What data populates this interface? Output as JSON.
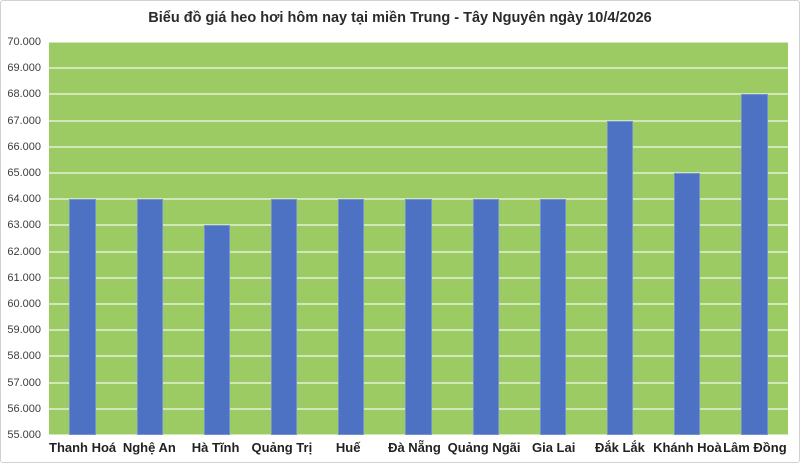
{
  "chart_data": {
    "type": "bar",
    "title": "Biểu đồ giá heo hơi hôm nay tại miền Trung - Tây Nguyên ngày 10/4/2026",
    "categories": [
      "Thanh Hoá",
      "Nghệ An",
      "Hà Tĩnh",
      "Quảng Trị",
      "Huế",
      "Đà Nẵng",
      "Quảng Ngãi",
      "Gia Lai",
      "Đắk Lắk",
      "Khánh Hoà",
      "Lâm Đồng"
    ],
    "values": [
      64000,
      64000,
      63000,
      64000,
      64000,
      64000,
      64000,
      64000,
      67000,
      65000,
      68000
    ],
    "xlabel": "",
    "ylabel": "",
    "ylim": [
      55000,
      70000
    ],
    "ytick_step": 1000,
    "yticks": [
      "55.000",
      "56.000",
      "57.000",
      "58.000",
      "59.000",
      "60.000",
      "61.000",
      "62.000",
      "63.000",
      "64.000",
      "65.000",
      "66.000",
      "67.000",
      "68.000",
      "69.000",
      "70.000"
    ],
    "grid": true,
    "legend": false,
    "colors": {
      "bar": "#4d72c4",
      "plot_background": "#9ccb63",
      "gridline": "#ffffff",
      "title_text": "#2b2b2b",
      "y_axis_text": "#3d3d3d",
      "x_axis_text": "#222222",
      "chart_border": "#d2d2d2"
    }
  }
}
